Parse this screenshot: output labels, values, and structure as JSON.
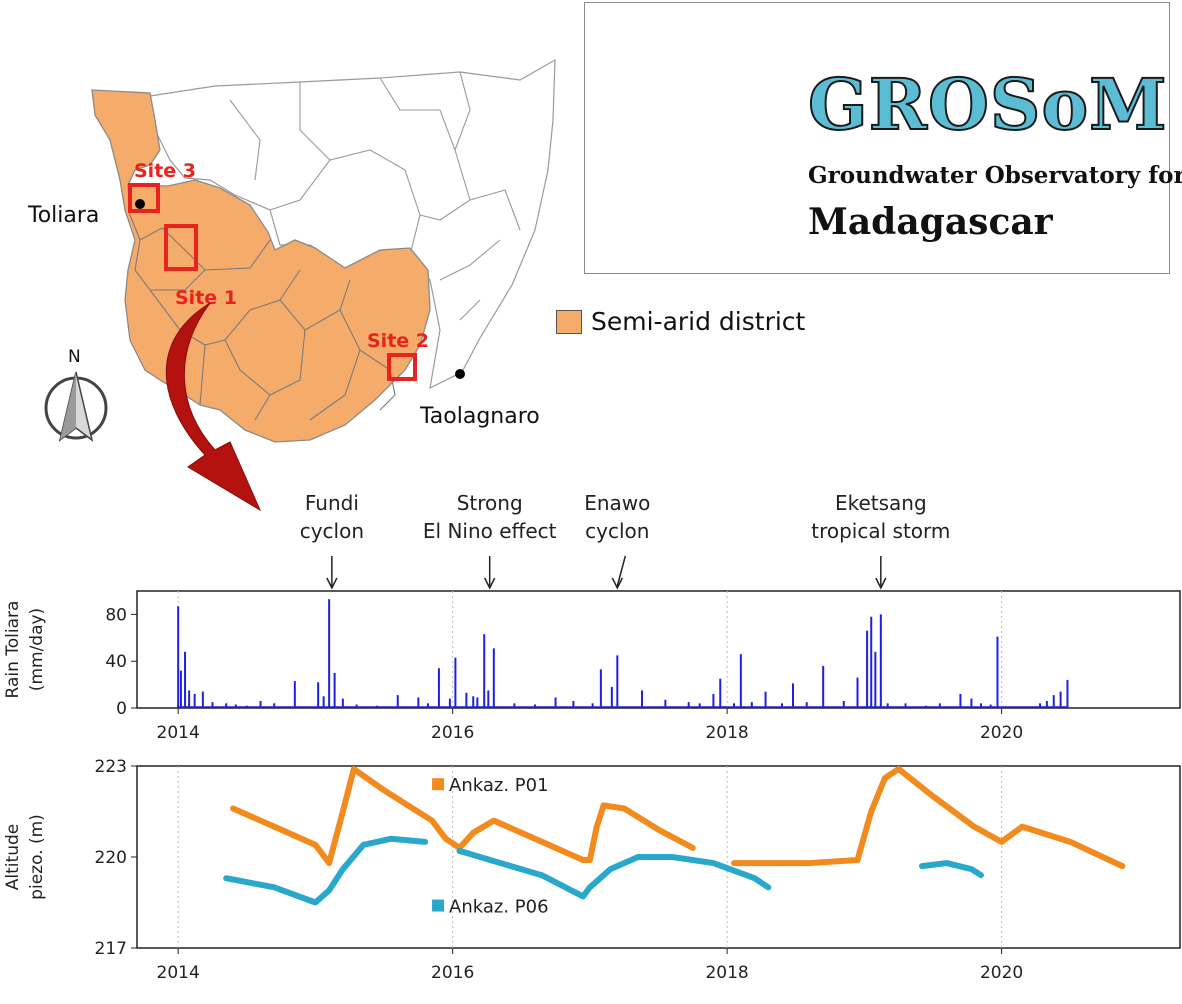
{
  "map": {
    "site1": "Site 1",
    "site2": "Site 2",
    "site3": "Site 3",
    "city_toliara": "Toliara",
    "city_taolagnaro": "Taolagnaro",
    "north": "N",
    "legend_label": "Semi-arid district",
    "district_color": "#f5ac6a",
    "site_color": "#e8231d"
  },
  "logo": {
    "title": "GROSoM",
    "subtitle_line1": "Groundwater Observatory for",
    "subtitle_line2": "Madagascar"
  },
  "chart_data": [
    {
      "type": "bar",
      "ylabel_line1": "Rain Toliara",
      "ylabel_line2": "(mm/day)",
      "ylim": [
        0,
        100
      ],
      "yticks": [
        0,
        40,
        80
      ],
      "xlim": [
        2013.7,
        2021.3
      ],
      "xticks": [
        2014,
        2016,
        2018,
        2020
      ],
      "grid": "vertical dotted",
      "color": "#1f1fe6",
      "annotations": [
        {
          "line1": "Fundi",
          "line2": "cyclon",
          "x": 2015.12
        },
        {
          "line1": "Strong",
          "line2": "El Nino effect",
          "x": 2016.27
        },
        {
          "line1": "Enawo",
          "line2": "cyclon",
          "x": 2017.2
        },
        {
          "line1": "Eketsang",
          "line2": "tropical storm",
          "x": 2019.12
        }
      ],
      "series": [
        {
          "x": [
            2014.0,
            2014.02,
            2014.05,
            2014.08,
            2014.12,
            2014.18,
            2014.25,
            2014.35,
            2014.42,
            2014.5,
            2014.6,
            2014.7,
            2014.85,
            2015.02,
            2015.06,
            2015.1,
            2015.14,
            2015.2,
            2015.3,
            2015.45,
            2015.6,
            2015.75,
            2015.82,
            2015.9,
            2015.98,
            2016.02,
            2016.1,
            2016.15,
            2016.18,
            2016.23,
            2016.26,
            2016.3,
            2016.45,
            2016.6,
            2016.75,
            2016.88,
            2017.02,
            2017.08,
            2017.16,
            2017.2,
            2017.38,
            2017.55,
            2017.72,
            2017.8,
            2017.9,
            2017.95,
            2018.05,
            2018.1,
            2018.18,
            2018.28,
            2018.4,
            2018.48,
            2018.58,
            2018.7,
            2018.85,
            2018.95,
            2019.02,
            2019.05,
            2019.08,
            2019.12,
            2019.17,
            2019.3,
            2019.45,
            2019.55,
            2019.7,
            2019.78,
            2019.85,
            2019.92,
            2019.97,
            2020.28,
            2020.33,
            2020.38,
            2020.43,
            2020.48
          ],
          "y": [
            87,
            32,
            48,
            15,
            12,
            14,
            5,
            4,
            3,
            2,
            6,
            4,
            23,
            22,
            10,
            93,
            30,
            8,
            3,
            2,
            11,
            9,
            4,
            34,
            8,
            43,
            13,
            10,
            9,
            63,
            15,
            51,
            4,
            3,
            9,
            6,
            4,
            33,
            18,
            45,
            15,
            7,
            5,
            4,
            12,
            25,
            4,
            46,
            5,
            14,
            4,
            21,
            5,
            36,
            6,
            26,
            66,
            78,
            48,
            80,
            4,
            4,
            2,
            4,
            12,
            8,
            4,
            3,
            61,
            4,
            6,
            11,
            14,
            24
          ]
        }
      ]
    },
    {
      "type": "line",
      "ylabel_line1": "Altitude",
      "ylabel_line2": "piezo. (m)",
      "ylim": [
        217,
        223
      ],
      "yticks": [
        217,
        220,
        223
      ],
      "xlim": [
        2013.7,
        2021.3
      ],
      "xticks": [
        2014,
        2016,
        2018,
        2020
      ],
      "grid": "vertical dotted",
      "series": [
        {
          "name": "Ankaz. P01",
          "color": "#f28a1d",
          "segments": [
            {
              "x": [
                2014.4,
                2014.7,
                2015.0,
                2015.1,
                2015.2,
                2015.28,
                2015.5,
                2015.85,
                2015.95,
                2016.05,
                2016.15,
                2016.3,
                2016.6,
                2016.95,
                2017.0,
                2017.05,
                2017.1,
                2017.25,
                2017.5,
                2017.75
              ],
              "y": [
                221.6,
                221.0,
                220.4,
                219.8,
                221.5,
                222.9,
                222.2,
                221.2,
                220.6,
                220.3,
                220.8,
                221.2,
                220.6,
                219.9,
                219.9,
                221.0,
                221.7,
                221.6,
                220.9,
                220.3
              ]
            },
            {
              "x": [
                2018.05,
                2018.3,
                2018.6,
                2018.95,
                2019.05,
                2019.15,
                2019.25,
                2019.5,
                2019.8,
                2020.0,
                2020.15,
                2020.5,
                2020.88
              ],
              "y": [
                219.8,
                219.8,
                219.8,
                219.9,
                221.5,
                222.6,
                222.9,
                222.0,
                221.0,
                220.5,
                221.0,
                220.5,
                219.7
              ]
            }
          ]
        },
        {
          "name": "Ankaz. P06",
          "color": "#2aa8cc",
          "segments": [
            {
              "x": [
                2014.35,
                2014.7,
                2015.0,
                2015.1,
                2015.2,
                2015.35,
                2015.55,
                2015.8
              ],
              "y": [
                219.3,
                219.0,
                218.5,
                218.9,
                219.6,
                220.4,
                220.6,
                220.5
              ]
            },
            {
              "x": [
                2016.05,
                2016.35,
                2016.65,
                2016.95,
                2017.0,
                2017.15,
                2017.35,
                2017.6,
                2017.9,
                2018.2,
                2018.3
              ],
              "y": [
                220.2,
                219.8,
                219.4,
                218.7,
                219.0,
                219.6,
                220.0,
                220.0,
                219.8,
                219.3,
                219.0
              ]
            },
            {
              "x": [
                2019.42,
                2019.6,
                2019.78,
                2019.85
              ],
              "y": [
                219.7,
                219.8,
                219.6,
                219.4
              ]
            }
          ]
        }
      ]
    }
  ]
}
